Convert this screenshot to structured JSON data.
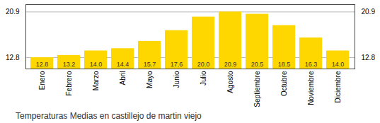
{
  "chart_data": {
    "type": "bar",
    "title": "Temperaturas Medias en castillejo de martin viejo",
    "categories": [
      "Enero",
      "Febrero",
      "Marzo",
      "Abril",
      "Mayo",
      "Junio",
      "Julio",
      "Agosto",
      "Septiembre",
      "Octubre",
      "Noviembre",
      "Diciembre"
    ],
    "values": [
      12.8,
      13.2,
      14.0,
      14.4,
      15.7,
      17.6,
      20.0,
      20.9,
      20.5,
      18.5,
      16.3,
      14.0
    ],
    "value_labels": [
      "12.8",
      "13.2",
      "14.0",
      "14.4",
      "15.7",
      "17.6",
      "20.0",
      "20.9",
      "20.5",
      "18.5",
      "16.3",
      "14.0"
    ],
    "color": "#FFD700",
    "ylim": [
      10.8,
      22.2
    ],
    "yticks": [
      12.8,
      20.9
    ],
    "grid": true,
    "data_labels": true
  }
}
